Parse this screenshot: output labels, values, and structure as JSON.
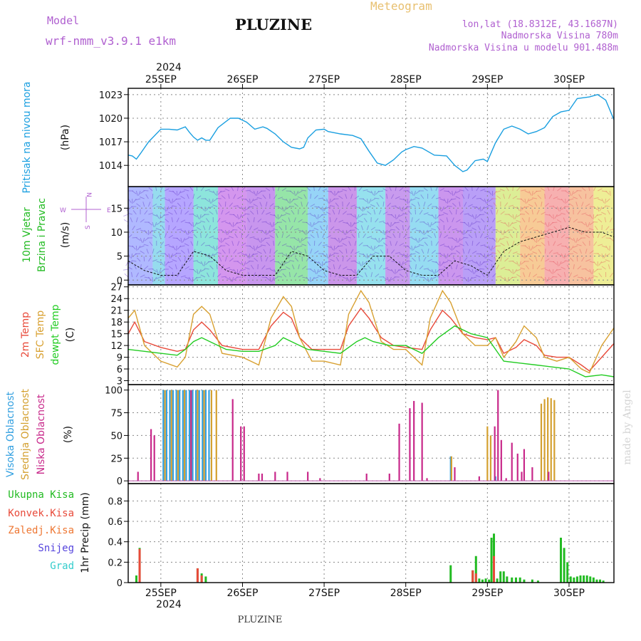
{
  "header": {
    "model_label": "Model",
    "model_name": "wrf-nmm_v3.9.1 e1km",
    "title": "PLUZINE",
    "meteogram_label": "Meteogram",
    "location": "lon,lat (18.8312E, 43.1687N)",
    "altitude": "Nadmorska Visina 780m",
    "model_altitude": "Nadmorska Visina u modelu 901.488m",
    "year_top": "2024",
    "year_bottom": "2024",
    "footer": "PLUZINE",
    "watermark": "made by Angel"
  },
  "colors": {
    "pressure": "#1a9fe0",
    "wind_axis": "#22bb22",
    "temp_2m": "#e84a3a",
    "temp_sfc": "#d8a030",
    "temp_dew": "#22cc22",
    "cloud_high": "#33a0e0",
    "cloud_mid": "#d4a030",
    "cloud_low": "#c8288a",
    "precip_total": "#22bb22",
    "precip_conv": "#e84a3a",
    "precip_frozen": "#ee7733",
    "snow": "#5544dd",
    "hail": "#33cccc",
    "compass": "#b060d0"
  },
  "time_axis": {
    "dates": [
      "25SEP",
      "26SEP",
      "27SEP",
      "28SEP",
      "29SEP",
      "30SEP"
    ],
    "start_day": 24.6,
    "end_day": 30.55
  },
  "chart_data": [
    {
      "type": "line",
      "panel": "pressure",
      "ylabel_line1": "Pritisak na nivou mora",
      "ylabel_unit": "(hPa)",
      "yticks": [
        1014,
        1017,
        1020,
        1023
      ],
      "ylim": [
        1011.3,
        1023.8
      ],
      "series": [
        {
          "key": "pressure",
          "x": [
            24.6,
            24.65,
            24.7,
            24.75,
            24.85,
            25.0,
            25.1,
            25.2,
            25.3,
            25.35,
            25.4,
            25.45,
            25.5,
            25.55,
            25.6,
            25.7,
            25.85,
            25.95,
            26.05,
            26.15,
            26.25,
            26.3,
            26.4,
            26.5,
            26.6,
            26.7,
            26.75,
            26.8,
            26.9,
            27.0,
            27.05,
            27.1,
            27.2,
            27.35,
            27.45,
            27.55,
            27.65,
            27.75,
            27.85,
            27.95,
            28.0,
            28.1,
            28.2,
            28.35,
            28.5,
            28.6,
            28.7,
            28.75,
            28.85,
            28.95,
            29.0,
            29.1,
            29.2,
            29.3,
            29.4,
            29.5,
            29.6,
            29.7,
            29.8,
            29.9,
            30.0,
            30.1,
            30.25,
            30.35,
            30.45,
            30.55
          ],
          "values": [
            1015.3,
            1015.2,
            1014.8,
            1015.5,
            1017.0,
            1018.6,
            1018.6,
            1018.5,
            1018.9,
            1018.2,
            1017.6,
            1017.2,
            1017.5,
            1017.2,
            1017.2,
            1018.8,
            1020.0,
            1020.0,
            1019.5,
            1018.6,
            1018.9,
            1018.7,
            1018.0,
            1017.0,
            1016.3,
            1016.1,
            1016.3,
            1017.5,
            1018.5,
            1018.6,
            1018.3,
            1018.2,
            1018.0,
            1017.8,
            1017.4,
            1015.8,
            1014.3,
            1014.0,
            1014.7,
            1015.7,
            1016.0,
            1016.4,
            1016.2,
            1015.3,
            1015.2,
            1014.0,
            1013.2,
            1013.4,
            1014.6,
            1014.8,
            1014.5,
            1016.9,
            1018.6,
            1019.0,
            1018.6,
            1018.0,
            1018.3,
            1018.8,
            1020.2,
            1020.8,
            1021.0,
            1022.5,
            1022.7,
            1023.0,
            1022.3,
            1019.8
          ]
        }
      ]
    },
    {
      "type": "line",
      "panel": "wind",
      "ylabel_line1": "10m Vjetar",
      "ylabel_line2": "Brzina i Pravac",
      "ylabel_unit": "(m/s)",
      "compass": {
        "n": "N",
        "s": "S",
        "w": "W",
        "e": "E"
      },
      "yticks": [
        0,
        5,
        10,
        15
      ],
      "ylim": [
        -1,
        19.5
      ],
      "series": [
        {
          "key": "speed",
          "x": [
            24.6,
            24.8,
            25.0,
            25.2,
            25.4,
            25.6,
            25.8,
            26.0,
            26.2,
            26.4,
            26.6,
            26.8,
            27.0,
            27.2,
            27.4,
            27.6,
            27.8,
            28.0,
            28.2,
            28.4,
            28.6,
            28.8,
            29.0,
            29.2,
            29.4,
            29.6,
            29.8,
            30.0,
            30.2,
            30.4,
            30.55
          ],
          "values": [
            4,
            2,
            1,
            1,
            6,
            5,
            2,
            1,
            1,
            1,
            6,
            5,
            2,
            1,
            1,
            5,
            5,
            2,
            1,
            1,
            4,
            3,
            1,
            6,
            8,
            9,
            10,
            11,
            10,
            10,
            9
          ]
        }
      ]
    },
    {
      "type": "line",
      "panel": "temperature",
      "ylabel_line1": "2m Temp",
      "ylabel_line2": "SFC Temp",
      "ylabel_line3": "dewpt Temp",
      "ylabel_unit": "(C)",
      "yticks": [
        3,
        6,
        9,
        12,
        15,
        18,
        21,
        24,
        27
      ],
      "ylim": [
        2,
        27.5
      ],
      "series": [
        {
          "key": "temp_2m",
          "x": [
            24.6,
            24.68,
            24.8,
            25.0,
            25.2,
            25.3,
            25.4,
            25.5,
            25.6,
            25.75,
            26.0,
            26.2,
            26.35,
            26.5,
            26.6,
            26.7,
            26.85,
            27.0,
            27.2,
            27.3,
            27.45,
            27.55,
            27.7,
            27.85,
            28.0,
            28.2,
            28.3,
            28.45,
            28.55,
            28.7,
            28.85,
            29.0,
            29.1,
            29.2,
            29.35,
            29.45,
            29.6,
            29.7,
            29.85,
            30.0,
            30.15,
            30.25,
            30.4,
            30.55
          ],
          "values": [
            15,
            18,
            13,
            11.5,
            10.5,
            11,
            16,
            18,
            16,
            12,
            11,
            11,
            17,
            20.5,
            19,
            14,
            11,
            11,
            11,
            17,
            21.5,
            19,
            14,
            12,
            11.5,
            11,
            16,
            21,
            19,
            15,
            14,
            13.5,
            14,
            10,
            11.5,
            13.5,
            12,
            9.5,
            9,
            9,
            7,
            5.5,
            9,
            12.5
          ]
        },
        {
          "key": "temp_sfc",
          "x": [
            24.6,
            24.68,
            24.8,
            25.0,
            25.2,
            25.3,
            25.4,
            25.5,
            25.6,
            25.75,
            26.0,
            26.2,
            26.35,
            26.5,
            26.6,
            26.7,
            26.85,
            27.0,
            27.2,
            27.3,
            27.45,
            27.55,
            27.7,
            27.85,
            28.0,
            28.2,
            28.3,
            28.45,
            28.55,
            28.7,
            28.85,
            29.0,
            29.1,
            29.2,
            29.35,
            29.45,
            29.6,
            29.7,
            29.85,
            30.0,
            30.15,
            30.25,
            30.4,
            30.55
          ],
          "values": [
            19,
            21,
            12,
            8,
            6.5,
            9,
            20,
            22,
            20,
            10,
            9,
            7,
            19,
            24.5,
            22,
            14,
            8,
            8,
            7,
            20,
            26,
            23,
            13,
            11,
            11,
            7,
            19,
            26,
            23,
            15,
            12,
            12,
            14,
            9,
            13,
            17,
            14,
            9,
            8,
            9,
            6,
            5,
            12,
            16.5
          ]
        },
        {
          "key": "temp_dew",
          "x": [
            24.6,
            24.8,
            25.0,
            25.2,
            25.3,
            25.4,
            25.5,
            25.6,
            25.8,
            26.0,
            26.2,
            26.4,
            26.5,
            26.6,
            26.8,
            27.0,
            27.2,
            27.4,
            27.5,
            27.6,
            27.8,
            28.0,
            28.2,
            28.4,
            28.6,
            28.8,
            29.0,
            29.2,
            29.4,
            29.6,
            29.8,
            30.0,
            30.2,
            30.4,
            30.55
          ],
          "values": [
            11,
            10.5,
            10,
            9.5,
            11,
            13,
            14,
            13,
            11,
            10.5,
            10.5,
            12,
            14,
            13,
            11,
            10.5,
            10,
            13,
            14,
            13,
            12,
            12,
            10,
            14,
            17,
            15,
            14,
            8,
            7.5,
            7,
            6.5,
            6,
            4,
            4.5,
            4
          ]
        }
      ]
    },
    {
      "type": "bar",
      "panel": "cloud",
      "ylabel_line1": "Visoka Oblacnost",
      "ylabel_line2": "Srednja Oblacnost",
      "ylabel_line3": "Niska Oblacnost",
      "ylabel_unit": "(%)",
      "yticks": [
        0,
        25,
        50,
        75,
        100
      ],
      "ylim": [
        -3,
        106
      ],
      "series": [
        {
          "key": "cloud_high",
          "x": [
            25.03,
            25.07,
            25.11,
            25.15,
            25.19,
            25.23,
            25.27,
            25.31,
            25.35,
            25.39,
            25.43,
            25.47,
            25.51,
            25.55,
            25.59,
            28.55,
            29.1
          ],
          "values": [
            100,
            100,
            100,
            100,
            100,
            100,
            100,
            100,
            100,
            100,
            100,
            100,
            100,
            100,
            100,
            27,
            5
          ]
        },
        {
          "key": "cloud_mid",
          "x": [
            25.05,
            25.13,
            25.21,
            25.29,
            25.37,
            25.45,
            25.53,
            25.62,
            25.68,
            28.56,
            29.0,
            29.04,
            29.66,
            29.7,
            29.74,
            29.78,
            29.82
          ],
          "values": [
            100,
            100,
            100,
            100,
            100,
            100,
            100,
            100,
            100,
            27,
            60,
            50,
            85,
            90,
            92,
            91,
            89
          ]
        },
        {
          "key": "cloud_low",
          "x": [
            24.72,
            24.88,
            24.92,
            25.37,
            25.88,
            25.98,
            26.02,
            26.2,
            26.24,
            26.4,
            26.55,
            26.8,
            26.95,
            27.52,
            27.8,
            27.92,
            28.05,
            28.1,
            28.2,
            28.26,
            28.6,
            28.9,
            29.09,
            29.13,
            29.17,
            29.23,
            29.3,
            29.37,
            29.42,
            29.45,
            29.55,
            29.75
          ],
          "values": [
            10,
            57,
            50,
            100,
            90,
            60,
            60,
            8,
            8,
            10,
            10,
            10,
            3,
            8,
            8,
            63,
            80,
            88,
            86,
            3,
            15,
            5,
            60,
            100,
            45,
            3,
            42,
            30,
            10,
            35,
            15,
            10
          ]
        }
      ]
    },
    {
      "type": "bar",
      "panel": "precip",
      "ylabel_unit": "1hr Precip (mm)",
      "legend": [
        "Ukupna Kisa",
        "Konvek.Kisa",
        "Zaledj.Kisa",
        "Snijeg",
        "Grad"
      ],
      "yticks": [
        0,
        0.2,
        0.4,
        0.6,
        0.8
      ],
      "ylim": [
        0,
        0.97
      ],
      "series": [
        {
          "key": "precip_total",
          "x": [
            24.7,
            24.74,
            25.45,
            25.5,
            25.55,
            28.55,
            28.82,
            28.86,
            28.9,
            28.94,
            28.98,
            29.02,
            29.05,
            29.08,
            29.12,
            29.16,
            29.2,
            29.24,
            29.3,
            29.35,
            29.4,
            29.45,
            29.55,
            29.62,
            29.9,
            29.94,
            29.98,
            30.02,
            30.06,
            30.1,
            30.14,
            30.18,
            30.22,
            30.26,
            30.3,
            30.34,
            30.38,
            30.42
          ],
          "values": [
            0.07,
            0.34,
            0.14,
            0.09,
            0.06,
            0.17,
            0.12,
            0.26,
            0.04,
            0.03,
            0.04,
            0.03,
            0.44,
            0.48,
            0.04,
            0.11,
            0.11,
            0.06,
            0.05,
            0.05,
            0.05,
            0.03,
            0.03,
            0.02,
            0.44,
            0.34,
            0.2,
            0.06,
            0.05,
            0.06,
            0.07,
            0.07,
            0.07,
            0.06,
            0.05,
            0.03,
            0.03,
            0.02
          ]
        },
        {
          "key": "precip_conv",
          "x": [
            24.74,
            25.45,
            25.5,
            28.82,
            28.86,
            29.08
          ],
          "values": [
            0.33,
            0.14,
            0.07,
            0.12,
            0.09,
            0.26
          ]
        }
      ]
    }
  ]
}
